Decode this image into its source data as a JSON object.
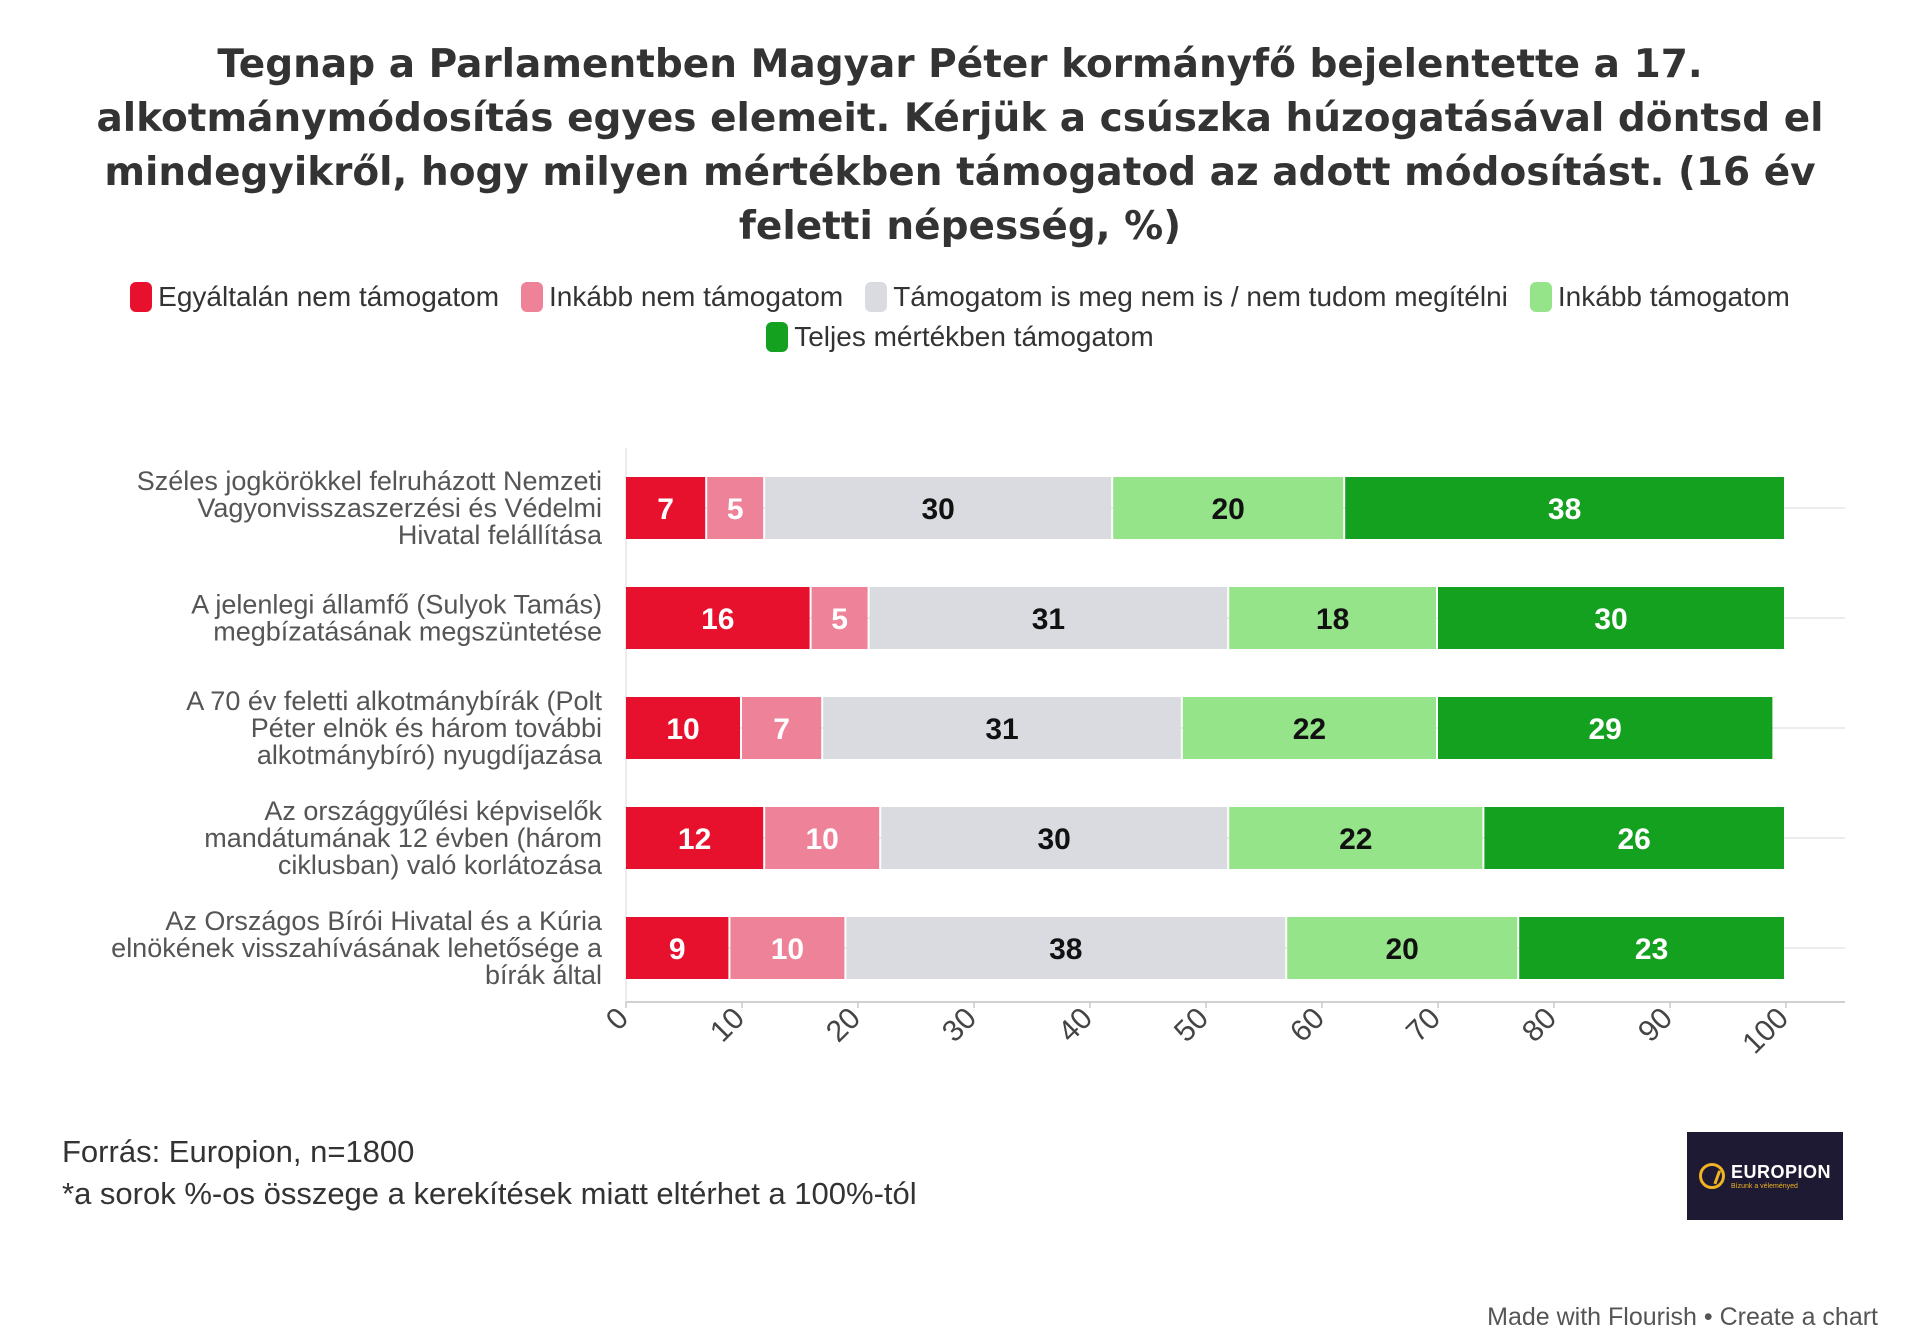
{
  "title": "Tegnap a Parlamentben Magyar Péter kormányfő bejelentette a 17. alkotmánymódosítás egyes elemeit. Kérjük a csúszka húzogatásával döntsd el mindegyikről, hogy milyen mértékben támogatod az adott módosítást. (16 év feletti népesség, %)",
  "legend": [
    {
      "label": "Egyáltalán nem támogatom",
      "color": "#e8112d"
    },
    {
      "label": "Inkább nem támogatom",
      "color": "#ee8298"
    },
    {
      "label": "Támogatom is meg nem is / nem tudom megítélni",
      "color": "#d9dbe1"
    },
    {
      "label": "Inkább támogatom",
      "color": "#96e48a"
    },
    {
      "label": "Teljes mértékben támogatom",
      "color": "#13a11f"
    }
  ],
  "chart_data": {
    "type": "bar",
    "orientation": "horizontal",
    "stacked": true,
    "categories": [
      "Széles jogkörökkel felruházott Nemzeti Vagyonvisszaszerzési és Védelmi Hivatal felállítása",
      "A jelenlegi államfő (Sulyok Tamás) megbízatásának megszüntetése",
      "A 70 év feletti alkotmánybírák (Polt Péter elnök és három további alkotmánybíró) nyugdíjazása",
      "Az országgyűlési képviselők mandátumának 12 évben (három ciklusban) való korlátozása",
      "Az Országos Bírói Hivatal és a Kúria elnökének visszahívásának lehetősége a bírák által"
    ],
    "category_lines": [
      [
        "Széles jogkörökkel felruházott Nemzeti",
        "Vagyonvisszaszerzési és Védelmi",
        "Hivatal felállítása"
      ],
      [
        "A jelenlegi államfő (Sulyok Tamás)",
        "megbízatásának megszüntetése"
      ],
      [
        "A 70 év feletti alkotmánybírák (Polt",
        "Péter elnök és három további",
        "alkotmánybíró) nyugdíjazása"
      ],
      [
        "Az országgyűlési képviselők",
        "mandátumának 12 évben (három",
        "ciklusban) való korlátozása"
      ],
      [
        "Az Országos Bírói Hivatal és a Kúria",
        "elnökének visszahívásának lehetősége a",
        "bírák által"
      ]
    ],
    "series": [
      {
        "name": "Egyáltalán nem támogatom",
        "color": "#e8112d",
        "label_color": "#ffffff",
        "values": [
          7,
          16,
          10,
          12,
          9
        ]
      },
      {
        "name": "Inkább nem támogatom",
        "color": "#ee8298",
        "label_color": "#ffffff",
        "values": [
          5,
          5,
          7,
          10,
          10
        ]
      },
      {
        "name": "Támogatom is meg nem is / nem tudom megítélni",
        "color": "#d9dbe1",
        "label_color": "#111111",
        "values": [
          30,
          31,
          31,
          30,
          38
        ]
      },
      {
        "name": "Inkább támogatom",
        "color": "#96e48a",
        "label_color": "#111111",
        "values": [
          20,
          18,
          22,
          22,
          20
        ]
      },
      {
        "name": "Teljes mértékben támogatom",
        "color": "#13a11f",
        "label_color": "#ffffff",
        "values": [
          38,
          30,
          29,
          26,
          23
        ]
      }
    ],
    "xlim": [
      0,
      100
    ],
    "x_ticks": [
      "0",
      "10",
      "20",
      "30",
      "40",
      "50",
      "60",
      "70",
      "80",
      "90",
      "100"
    ],
    "grid": true,
    "legend_position": "top"
  },
  "footer": {
    "source": "Forrás: Europion, n=1800",
    "note": "*a sorok %-os összege a kerekítések miatt eltérhet a 100%-tól",
    "made_with": "Made with Flourish • Create a chart"
  },
  "logo": {
    "name": "EUROPION",
    "tagline": "Bízunk a véleményed",
    "colors": {
      "background": "#1f1a33",
      "accent": "#f0b323"
    }
  }
}
